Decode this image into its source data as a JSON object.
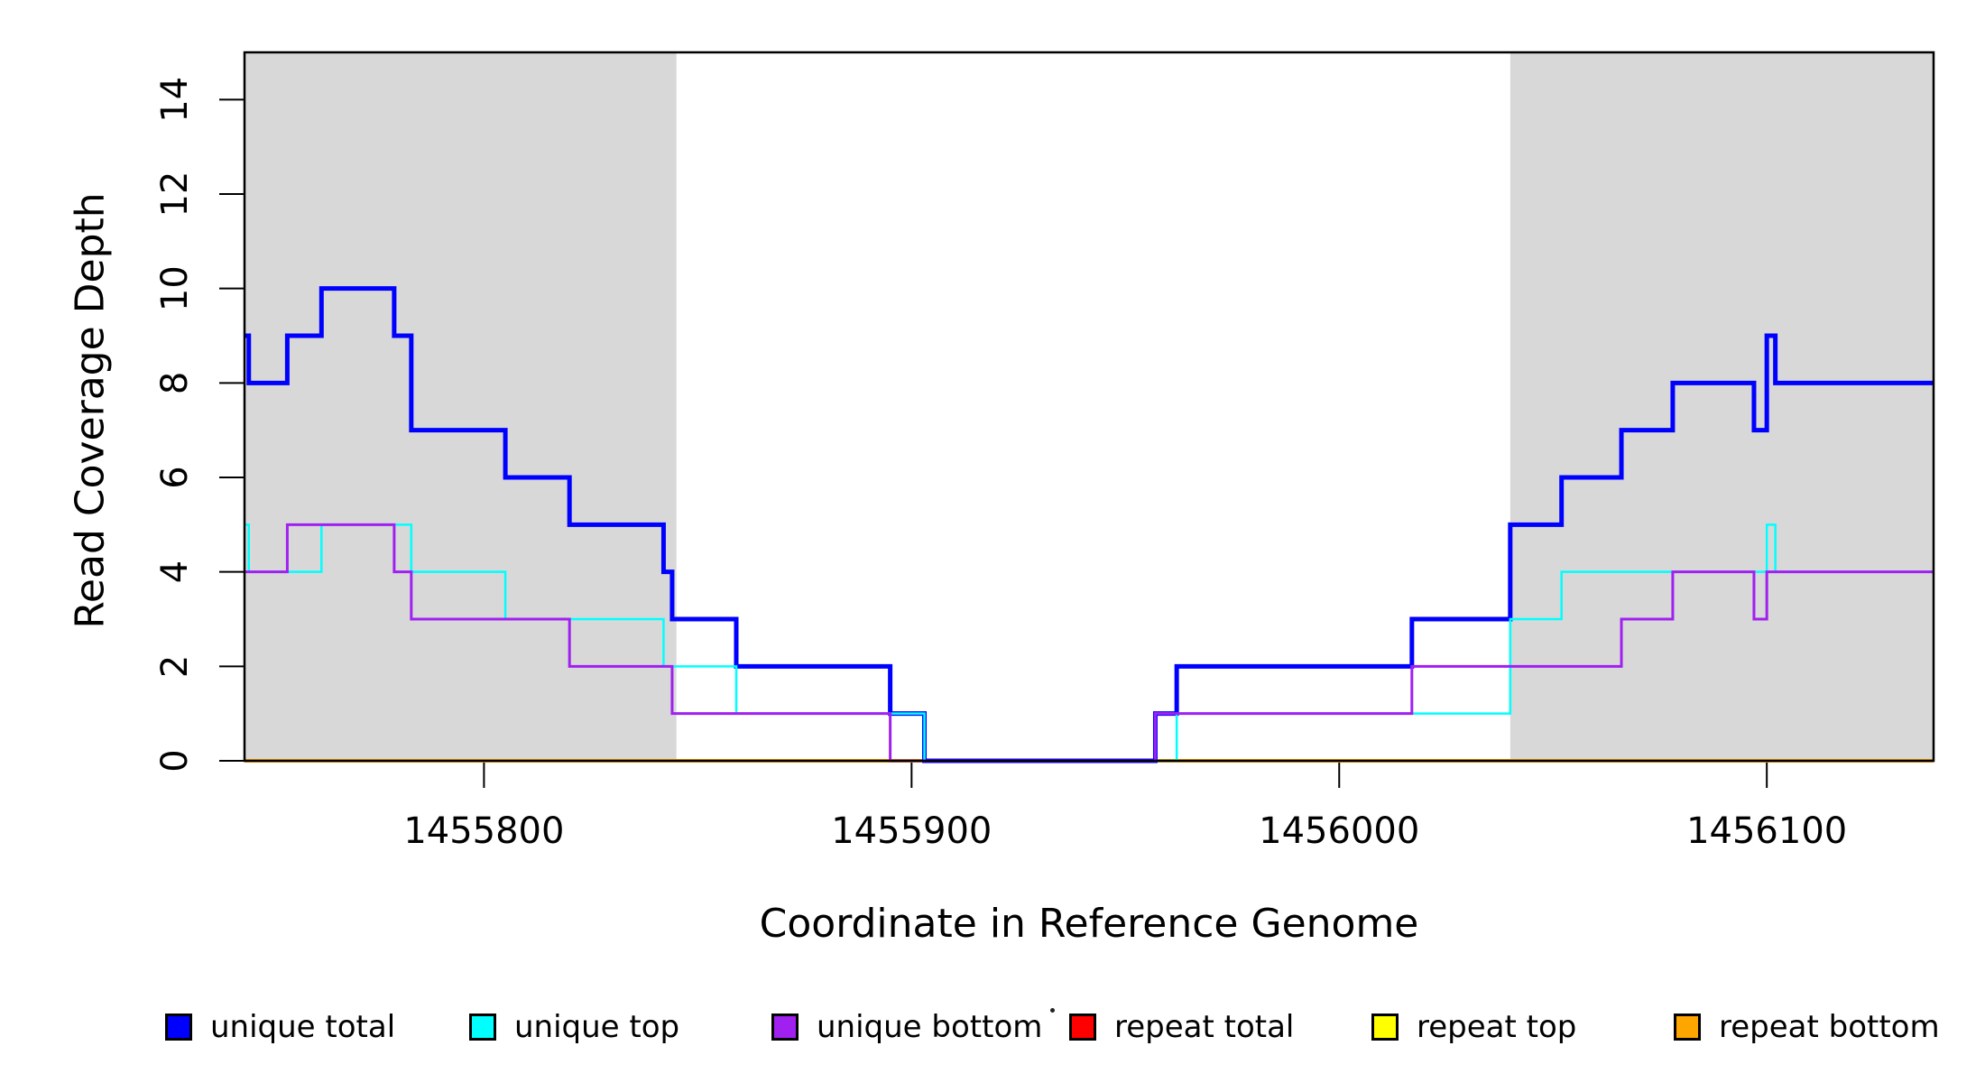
{
  "chart_data": {
    "type": "line",
    "step": true,
    "title": "",
    "xlabel": "Coordinate in Reference Genome",
    "ylabel": "Read Coverage Depth",
    "xlim": [
      1455744,
      1456139
    ],
    "ylim": [
      0,
      15
    ],
    "x_ticks": [
      1455800,
      1455900,
      1456000,
      1456100
    ],
    "y_ticks": [
      0,
      2,
      4,
      6,
      8,
      10,
      12,
      14
    ],
    "grid": false,
    "legend_position": "bottom",
    "background": "#ffffff",
    "shaded_regions": [
      {
        "x0": 1455744,
        "x1": 1455845,
        "color": "#d8d8d8"
      },
      {
        "x0": 1456040,
        "x1": 1456139,
        "color": "#d8d8d8"
      }
    ],
    "series": [
      {
        "name": "unique total",
        "color": "#0000ff",
        "width": 5,
        "points": [
          [
            1455744,
            9
          ],
          [
            1455745,
            8
          ],
          [
            1455754,
            9
          ],
          [
            1455762,
            10
          ],
          [
            1455779,
            9
          ],
          [
            1455783,
            7
          ],
          [
            1455805,
            6
          ],
          [
            1455820,
            5
          ],
          [
            1455842,
            4
          ],
          [
            1455844,
            3
          ],
          [
            1455859,
            2
          ],
          [
            1455895,
            1
          ],
          [
            1455903,
            0
          ],
          [
            1455957,
            1
          ],
          [
            1455962,
            2
          ],
          [
            1456017,
            3
          ],
          [
            1456040,
            5
          ],
          [
            1456052,
            6
          ],
          [
            1456066,
            7
          ],
          [
            1456078,
            8
          ],
          [
            1456097,
            7
          ],
          [
            1456100,
            9
          ],
          [
            1456102,
            8
          ]
        ]
      },
      {
        "name": "unique top",
        "color": "#00ffff",
        "width": 2.5,
        "points": [
          [
            1455744,
            5
          ],
          [
            1455745,
            4
          ],
          [
            1455762,
            5
          ],
          [
            1455783,
            4
          ],
          [
            1455805,
            3
          ],
          [
            1455842,
            2
          ],
          [
            1455859,
            1
          ],
          [
            1455903,
            0
          ],
          [
            1455962,
            1
          ],
          [
            1456040,
            3
          ],
          [
            1456052,
            4
          ],
          [
            1456100,
            5
          ],
          [
            1456102,
            4
          ]
        ]
      },
      {
        "name": "unique bottom",
        "color": "#a020f0",
        "width": 3,
        "points": [
          [
            1455744,
            4
          ],
          [
            1455754,
            5
          ],
          [
            1455779,
            4
          ],
          [
            1455783,
            3
          ],
          [
            1455820,
            2
          ],
          [
            1455844,
            1
          ],
          [
            1455895,
            0
          ],
          [
            1455957,
            1
          ],
          [
            1456017,
            2
          ],
          [
            1456066,
            3
          ],
          [
            1456078,
            4
          ],
          [
            1456097,
            3
          ],
          [
            1456100,
            4
          ]
        ]
      },
      {
        "name": "repeat total",
        "color": "#ff0000",
        "width": 2.5,
        "points": [
          [
            1455744,
            0
          ]
        ]
      },
      {
        "name": "repeat top",
        "color": "#ffff00",
        "width": 2.5,
        "points": [
          [
            1455744,
            0
          ]
        ]
      },
      {
        "name": "repeat bottom",
        "color": "#ffa500",
        "width": 4,
        "points": [
          [
            1455744,
            0
          ]
        ]
      }
    ],
    "draw_order": [
      "repeat total",
      "repeat top",
      "repeat bottom",
      "unique total",
      "unique top",
      "unique bottom"
    ]
  },
  "legend": {
    "items": [
      {
        "label": "unique total",
        "color": "#0000ff"
      },
      {
        "label": "unique top",
        "color": "#00ffff"
      },
      {
        "label": "unique bottom",
        "color": "#a020f0"
      },
      {
        "label": "repeat total",
        "color": "#ff0000"
      },
      {
        "label": "repeat top",
        "color": "#ffff00"
      },
      {
        "label": "repeat bottom",
        "color": "#ffa500"
      }
    ]
  },
  "axes": {
    "x_title": "Coordinate in Reference Genome",
    "y_title": "Read Coverage Depth"
  }
}
